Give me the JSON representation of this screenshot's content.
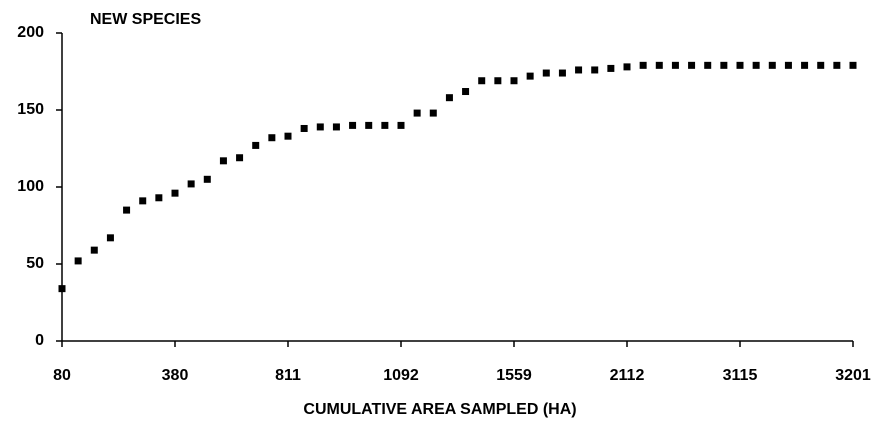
{
  "chart_data": {
    "type": "scatter",
    "title": "NEW SPECIES",
    "x_label": "CUMULATIVE AREA SAMPLED (HA)",
    "categories": [
      "80",
      null,
      null,
      null,
      null,
      null,
      null,
      "380",
      null,
      null,
      null,
      null,
      null,
      null,
      "811",
      null,
      null,
      null,
      null,
      null,
      null,
      "1092",
      null,
      null,
      null,
      null,
      null,
      null,
      "1559",
      null,
      null,
      null,
      null,
      null,
      null,
      "2112",
      null,
      null,
      null,
      null,
      null,
      null,
      "3115",
      null,
      null,
      null,
      null,
      null,
      null,
      "3201"
    ],
    "values": [
      34,
      52,
      59,
      67,
      85,
      91,
      93,
      96,
      102,
      105,
      117,
      119,
      127,
      132,
      133,
      138,
      139,
      139,
      140,
      140,
      140,
      140,
      148,
      148,
      158,
      162,
      169,
      169,
      169,
      172,
      174,
      174,
      176,
      176,
      177,
      178,
      179,
      179,
      179,
      179,
      179,
      179,
      179,
      179,
      179,
      179,
      179,
      179,
      179,
      179
    ],
    "color": "#000000",
    "ylim": [
      0,
      200
    ],
    "yticks": [
      0,
      50,
      100,
      150,
      200
    ],
    "grid": false
  }
}
